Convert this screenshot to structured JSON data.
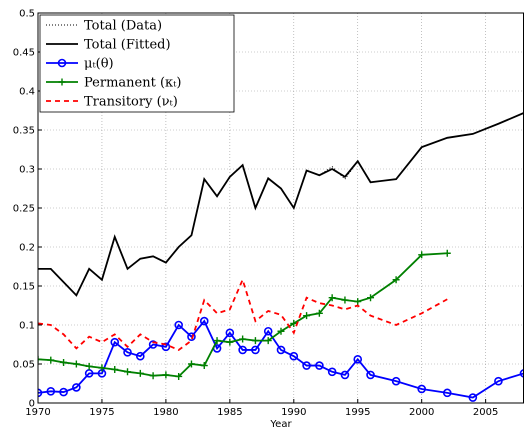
{
  "chart_data": {
    "type": "line",
    "x_label": "Year",
    "x": [
      1970,
      1971,
      1972,
      1973,
      1974,
      1975,
      1976,
      1977,
      1978,
      1979,
      1980,
      1981,
      1982,
      1983,
      1984,
      1985,
      1986,
      1987,
      1988,
      1989,
      1990,
      1991,
      1992,
      1993,
      1994,
      1995,
      1996,
      1998,
      2000,
      2002,
      2004,
      2006,
      2008
    ],
    "xlim": [
      1970,
      2008
    ],
    "xticks": [
      1970,
      1975,
      1980,
      1985,
      1990,
      1995,
      2000,
      2005
    ],
    "ylim": [
      0,
      0.5
    ],
    "yticks": [
      0,
      0.05,
      0.1,
      0.15,
      0.2,
      0.25,
      0.3,
      0.35,
      0.4,
      0.45,
      0.5
    ],
    "grid": true,
    "legend": "upper-left",
    "series": [
      {
        "name": "Total (Data)",
        "color": "#000000",
        "style": "dotted",
        "marker": "none",
        "values": [
          0.172,
          0.172,
          0.155,
          0.138,
          0.172,
          0.158,
          0.213,
          0.172,
          0.185,
          0.188,
          0.18,
          0.2,
          0.215,
          0.287,
          0.265,
          0.29,
          0.305,
          0.25,
          0.288,
          0.275,
          0.25,
          0.298,
          0.292,
          0.303,
          0.287,
          0.31,
          0.283,
          0.287,
          0.328,
          0.34,
          0.345,
          0.358,
          0.372
        ]
      },
      {
        "name": "Total (Fitted)",
        "color": "#000000",
        "style": "solid",
        "marker": "none",
        "values": [
          0.172,
          0.172,
          0.155,
          0.138,
          0.172,
          0.158,
          0.213,
          0.172,
          0.185,
          0.188,
          0.18,
          0.2,
          0.215,
          0.287,
          0.265,
          0.29,
          0.305,
          0.25,
          0.288,
          0.275,
          0.25,
          0.298,
          0.292,
          0.3,
          0.29,
          0.31,
          0.283,
          0.287,
          0.328,
          0.34,
          0.345,
          0.358,
          0.372
        ]
      },
      {
        "name": "μₜ(θ)",
        "color": "#0000ff",
        "style": "solid",
        "marker": "circle",
        "values": [
          0.013,
          0.015,
          0.014,
          0.02,
          0.038,
          0.038,
          0.078,
          0.065,
          0.06,
          0.075,
          0.072,
          0.1,
          0.085,
          0.105,
          0.07,
          0.09,
          0.068,
          0.068,
          0.092,
          0.068,
          0.06,
          0.048,
          0.048,
          0.04,
          0.036,
          0.056,
          0.036,
          0.028,
          0.018,
          0.013,
          0.007,
          0.028,
          0.038
        ]
      },
      {
        "name": "Permanent (κₜ)",
        "color": "#008000",
        "style": "solid",
        "marker": "plus",
        "values": [
          0.056,
          0.055,
          0.052,
          0.05,
          0.047,
          0.045,
          0.043,
          0.04,
          0.038,
          0.035,
          0.036,
          0.034,
          0.05,
          0.048,
          0.08,
          0.078,
          0.082,
          0.08,
          0.08,
          0.092,
          0.102,
          0.112,
          0.115,
          0.135,
          0.132,
          0.13,
          0.135,
          0.158,
          0.19,
          0.192,
          null,
          null,
          null
        ]
      },
      {
        "name": "Transitory (νₜ)",
        "color": "#ff0000",
        "style": "dashed",
        "marker": "none",
        "values": [
          0.102,
          0.1,
          0.088,
          0.07,
          0.085,
          0.078,
          0.088,
          0.072,
          0.088,
          0.078,
          0.075,
          0.068,
          0.08,
          0.132,
          0.115,
          0.12,
          0.158,
          0.105,
          0.118,
          0.113,
          0.09,
          0.135,
          0.128,
          0.125,
          0.12,
          0.125,
          0.112,
          0.1,
          0.115,
          0.133,
          null,
          null,
          null
        ]
      }
    ]
  }
}
